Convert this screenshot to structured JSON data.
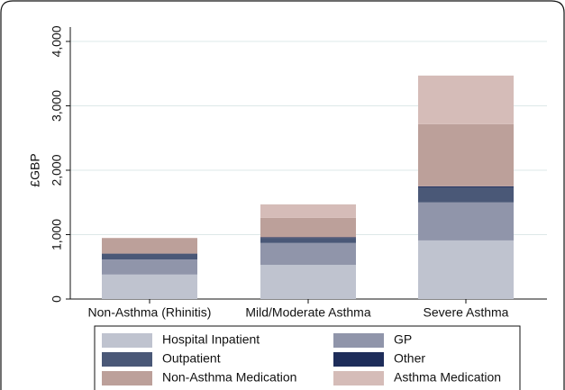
{
  "chart_data": {
    "type": "stacked_bar",
    "y_label": "£GBP",
    "categories": [
      "Non-Asthma (Rhinitis)",
      "Mild/Moderate Asthma",
      "Severe Asthma"
    ],
    "series": [
      {
        "name": "Hospital Inpatient",
        "color": "#bfc3cf",
        "values": [
          380,
          530,
          910
        ]
      },
      {
        "name": "GP",
        "color": "#9095aa",
        "values": [
          235,
          340,
          590
        ]
      },
      {
        "name": "Outpatient",
        "color": "#4a5877",
        "values": [
          85,
          80,
          235
        ]
      },
      {
        "name": "Other",
        "color": "#1e2d5a",
        "values": [
          5,
          10,
          15
        ]
      },
      {
        "name": "Non-Asthma Medication",
        "color": "#bca09a",
        "values": [
          240,
          300,
          965
        ]
      },
      {
        "name": "Asthma Medication",
        "color": "#d5bcb8",
        "values": [
          5,
          210,
          755
        ]
      }
    ],
    "ylim": [
      0,
      4000
    ],
    "yticks": [
      0,
      {
        "value": 1000,
        "label": "1,000"
      },
      {
        "value": 2000,
        "label": "2,000"
      },
      {
        "value": 3000,
        "label": "3,000"
      },
      {
        "value": 4000,
        "label": "4,000"
      }
    ],
    "grid": true
  }
}
